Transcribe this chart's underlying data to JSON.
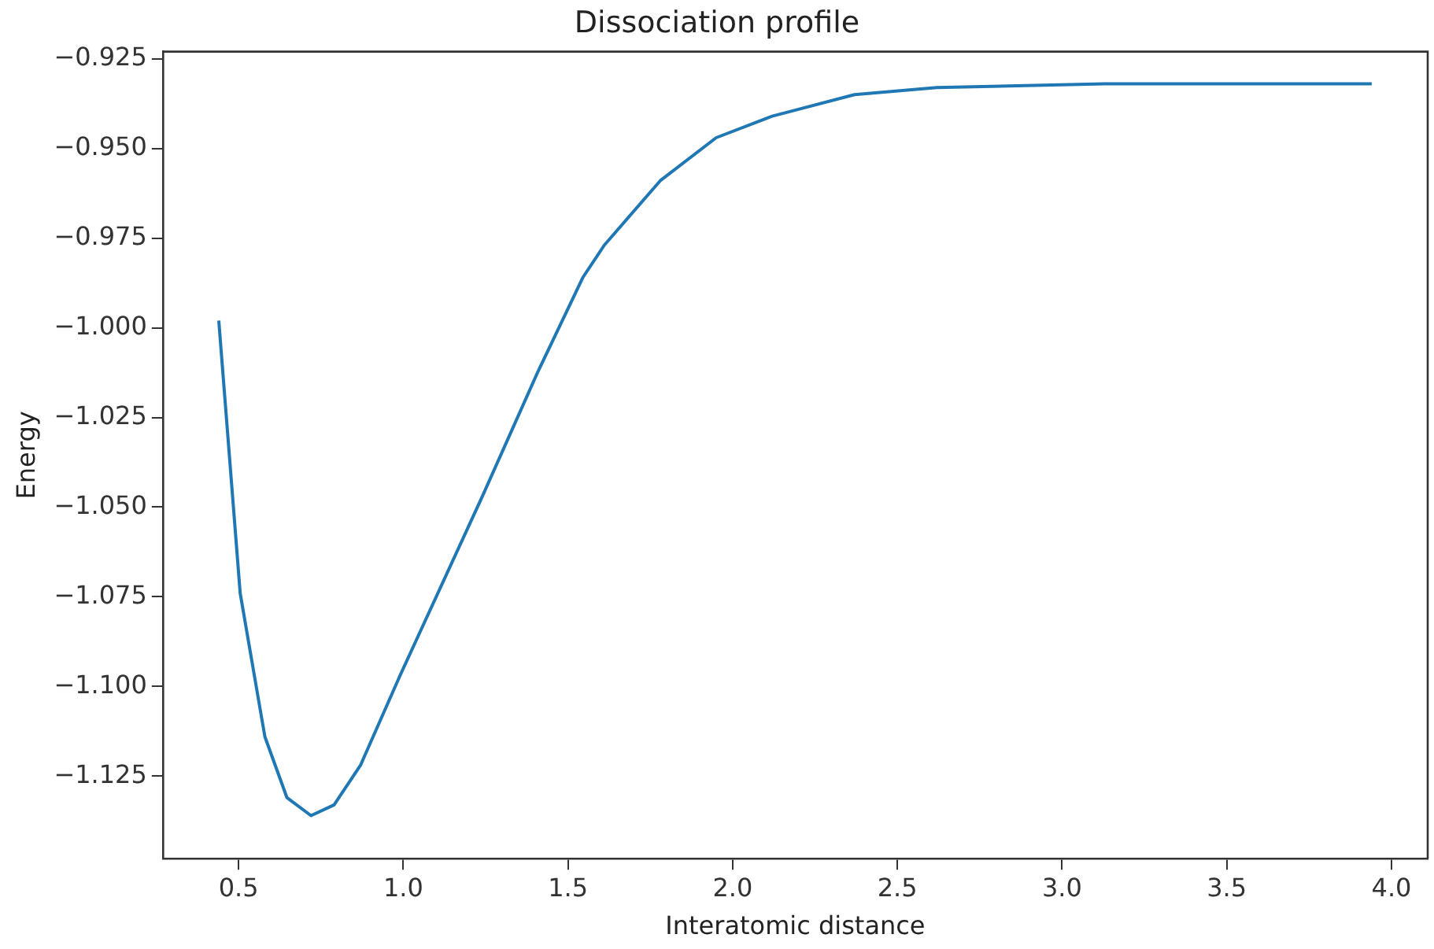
{
  "chart_data": {
    "type": "line",
    "title": "Dissociation profile",
    "xlabel": "Interatomic distance",
    "ylabel": "Energy",
    "x": [
      0.44,
      0.505,
      0.58,
      0.647,
      0.72,
      0.79,
      0.87,
      0.99,
      1.05,
      1.24,
      1.41,
      1.545,
      1.61,
      1.78,
      1.95,
      2.12,
      2.37,
      2.62,
      3.13,
      3.94
    ],
    "series": [
      {
        "color": "#1f77b4",
        "values": [
          -0.998,
          -1.074,
          -1.114,
          -1.131,
          -1.136,
          -1.133,
          -1.122,
          -1.097,
          -1.085,
          -1.047,
          -1.012,
          -0.986,
          -0.977,
          -0.959,
          -0.947,
          -0.941,
          -0.935,
          -0.933,
          -0.932,
          -0.932
        ]
      }
    ],
    "xlim": [
      0.27,
      4.11
    ],
    "xticks": [
      0.5,
      {
        "value": 1,
        "label": "1.0"
      },
      1.5,
      {
        "value": 2,
        "label": "2.0"
      },
      2.5,
      {
        "value": 3,
        "label": "3.0"
      },
      3.5,
      {
        "value": 4,
        "label": "4.0"
      }
    ],
    "ylim": [
      -1.148,
      -0.923
    ],
    "yticks": [
      {
        "value": -1.125,
        "label": "−1.125"
      },
      {
        "value": -1.1,
        "label": "−1.100"
      },
      {
        "value": -1.075,
        "label": "−1.075"
      },
      {
        "value": -1.05,
        "label": "−1.050"
      },
      {
        "value": -1.025,
        "label": "−1.025"
      },
      {
        "value": -1.0,
        "label": "−1.000"
      },
      {
        "value": -0.975,
        "label": "−0.975"
      },
      {
        "value": -0.95,
        "label": "−0.950"
      },
      {
        "value": -0.925,
        "label": "−0.925"
      }
    ],
    "grid": false,
    "legend": false,
    "marker": "none",
    "line_style": "solid"
  }
}
